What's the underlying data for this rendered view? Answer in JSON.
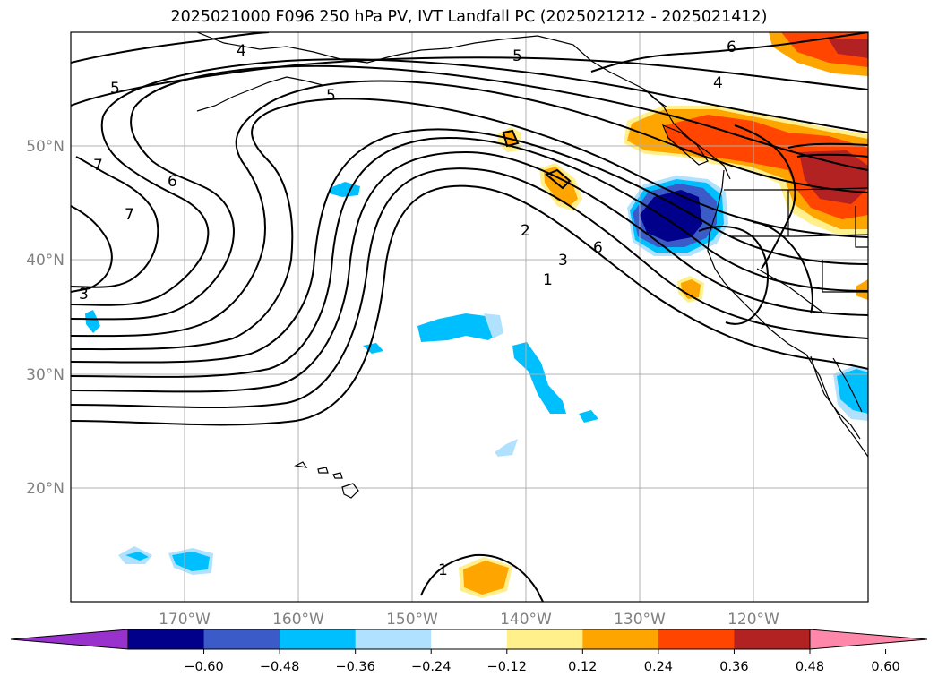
{
  "title": "2025021000 F096 250 hPa PV, IVT Landfall PC (2025021212 - 2025021412)",
  "longitude_labels": [
    "170°W",
    "160°W",
    "150°W",
    "140°W",
    "130°W",
    "120°W"
  ],
  "latitude_labels": [
    "50°N",
    "40°N",
    "30°N",
    "20°N"
  ],
  "contour_labels": [
    "4",
    "5",
    "5",
    "5",
    "6",
    "4",
    "7",
    "6",
    "7",
    "3",
    "2",
    "3",
    "1",
    "6",
    "1"
  ],
  "colorbar": {
    "tick_labels": [
      "−0.60",
      "−0.48",
      "−0.36",
      "−0.24",
      "−0.12",
      "0.12",
      "0.24",
      "0.36",
      "0.48",
      "0.60"
    ],
    "colors": [
      "#9932cc",
      "#00008b",
      "#3a5bc8",
      "#00bfff",
      "#b0e2ff",
      "#ffffff",
      "#fff08c",
      "#ffa500",
      "#ff4500",
      "#b22222",
      "#ff88aa"
    ]
  },
  "colors": {
    "grid": "#b0b0b0",
    "axis_text": "#808080"
  }
}
